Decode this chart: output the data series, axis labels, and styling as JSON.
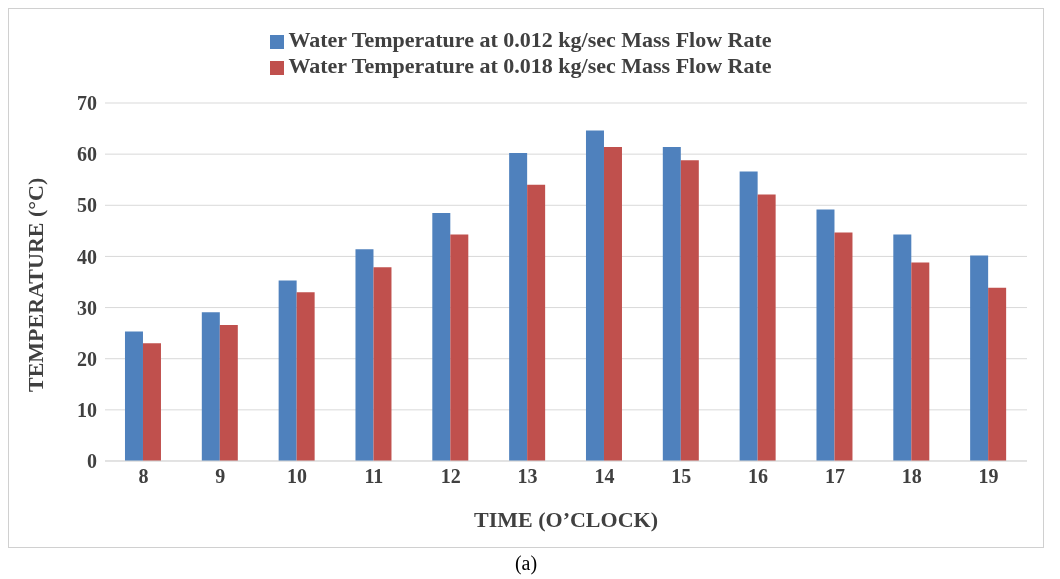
{
  "chart_data": {
    "type": "bar",
    "xlabel": "TIME (O’CLOCK)",
    "ylabel": "TEMPERATURE (°C)",
    "categories": [
      "8",
      "9",
      "10",
      "11",
      "12",
      "13",
      "14",
      "15",
      "16",
      "17",
      "18",
      "19"
    ],
    "series": [
      {
        "name": "Water Temperature at 0.012 kg/sec Mass Flow Rate",
        "color": "#4f81bd",
        "values": [
          25.3,
          29.1,
          35.3,
          41.4,
          48.5,
          60.2,
          64.6,
          61.4,
          56.6,
          49.2,
          44.3,
          40.2
        ]
      },
      {
        "name": "Water Temperature at 0.018 kg/sec Mass Flow Rate",
        "color": "#c0504d",
        "values": [
          23.0,
          26.6,
          33.0,
          37.9,
          44.3,
          54.0,
          61.4,
          58.8,
          52.1,
          44.7,
          38.8,
          33.9
        ]
      }
    ],
    "ylim": [
      0,
      70
    ],
    "yticks": [
      0,
      10,
      20,
      30,
      40,
      50,
      60,
      70
    ],
    "grid": "y",
    "legend": "top",
    "annotations": [
      "(a)"
    ]
  }
}
